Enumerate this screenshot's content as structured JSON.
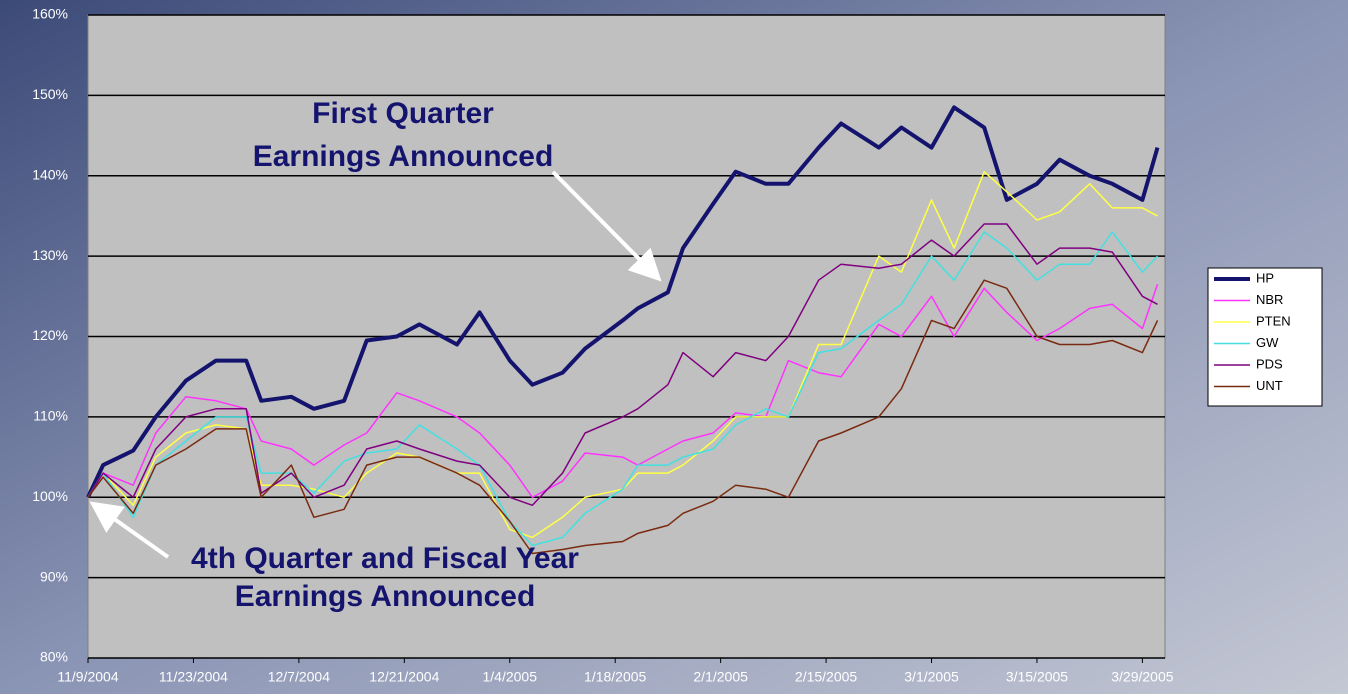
{
  "chart_data": {
    "type": "line",
    "x": [
      "2004-11-09",
      "2004-11-11",
      "2004-11-15",
      "2004-11-18",
      "2004-11-22",
      "2004-11-26",
      "2004-11-30",
      "2004-12-02",
      "2004-12-06",
      "2004-12-09",
      "2004-12-13",
      "2004-12-16",
      "2004-12-20",
      "2004-12-23",
      "2004-12-28",
      "2004-12-31",
      "2005-01-04",
      "2005-01-07",
      "2005-01-11",
      "2005-01-14",
      "2005-01-19",
      "2005-01-21",
      "2005-01-25",
      "2005-01-27",
      "2005-01-31",
      "2005-02-03",
      "2005-02-07",
      "2005-02-10",
      "2005-02-14",
      "2005-02-17",
      "2005-02-22",
      "2005-02-25",
      "2005-03-01",
      "2005-03-04",
      "2005-03-08",
      "2005-03-11",
      "2005-03-15",
      "2005-03-18",
      "2005-03-22",
      "2005-03-25",
      "2005-03-29",
      "2005-03-31"
    ],
    "series": [
      {
        "name": "HP",
        "color": "#14146e",
        "values": [
          100,
          104,
          105.8,
          110,
          114.5,
          117,
          117,
          112,
          112.5,
          111,
          112,
          119.5,
          120,
          121.5,
          119,
          123,
          117,
          114,
          115.5,
          118.5,
          122,
          123.5,
          125.5,
          131,
          136.5,
          140.5,
          139,
          139,
          143.5,
          146.5,
          143.5,
          146,
          143.5,
          148.5,
          146,
          137,
          139,
          142,
          140,
          139,
          137,
          143.5
        ]
      },
      {
        "name": "NBR",
        "color": "#ff33ff",
        "values": [
          100,
          103,
          101.5,
          108,
          112.5,
          112,
          111,
          107,
          106,
          104,
          106.5,
          108,
          113,
          112,
          110,
          108,
          104,
          100,
          102,
          105.5,
          105,
          104,
          106,
          107,
          108,
          110.5,
          110,
          117,
          115.5,
          115,
          121.5,
          120,
          125,
          120,
          126,
          123,
          119.5,
          121,
          123.5,
          124,
          121,
          126.5
        ]
      },
      {
        "name": "PTEN",
        "color": "#ffff44",
        "values": [
          100,
          103,
          99,
          105,
          108,
          109,
          108.5,
          101.5,
          101.5,
          101,
          100,
          103,
          105.5,
          105,
          103,
          103,
          96,
          95,
          97.5,
          100,
          101,
          103,
          103,
          104,
          107,
          110,
          110,
          110,
          119,
          119,
          130,
          128,
          137,
          131,
          140.5,
          138,
          134.5,
          135.5,
          139,
          136,
          136,
          135
        ]
      },
      {
        "name": "GW",
        "color": "#44e0e0",
        "values": [
          100,
          103,
          97.5,
          104,
          107,
          110,
          110,
          103,
          103,
          100.5,
          104.5,
          105.5,
          106,
          109,
          106,
          104,
          97,
          94,
          95,
          98,
          101,
          104,
          104,
          105,
          106,
          109,
          111,
          110,
          118,
          118.5,
          122,
          124,
          130,
          127,
          133,
          131,
          127,
          129,
          129,
          133,
          128,
          130
        ]
      },
      {
        "name": "PDS",
        "color": "#800080",
        "values": [
          100,
          103,
          100,
          106,
          110,
          111,
          111,
          100.5,
          103,
          100,
          101.5,
          106,
          107,
          106,
          104.5,
          104,
          100,
          99,
          103,
          108,
          110,
          111,
          114,
          118,
          115,
          118,
          117,
          120,
          127,
          129,
          128.5,
          129,
          132,
          130,
          134,
          134,
          129,
          131,
          131,
          130.5,
          125,
          124
        ]
      },
      {
        "name": "UNT",
        "color": "#7a2a10",
        "values": [
          100,
          102.5,
          98,
          104,
          106,
          108.5,
          108.5,
          100,
          104,
          97.5,
          98.5,
          104,
          105,
          105,
          103,
          101.5,
          97,
          93,
          93.5,
          94,
          94.5,
          95.5,
          96.5,
          98,
          99.5,
          101.5,
          101,
          100,
          107,
          108,
          110,
          113.5,
          122,
          121,
          127,
          126,
          120,
          119,
          119,
          119.5,
          118,
          122
        ]
      }
    ],
    "xlim": [
      "2004-11-09",
      "2005-04-01"
    ],
    "xticks": [
      {
        "value": "2004-11-09",
        "label": "11/9/2004"
      },
      {
        "value": "2004-11-23",
        "label": "11/23/2004"
      },
      {
        "value": "2004-12-07",
        "label": "12/7/2004"
      },
      {
        "value": "2004-12-21",
        "label": "12/21/2004"
      },
      {
        "value": "2005-01-04",
        "label": "1/4/2005"
      },
      {
        "value": "2005-01-18",
        "label": "1/18/2005"
      },
      {
        "value": "2005-02-01",
        "label": "2/1/2005"
      },
      {
        "value": "2005-02-15",
        "label": "2/15/2005"
      },
      {
        "value": "2005-03-01",
        "label": "3/1/2005"
      },
      {
        "value": "2005-03-15",
        "label": "3/15/2005"
      },
      {
        "value": "2005-03-29",
        "label": "3/29/2005"
      }
    ],
    "ylim": [
      80,
      160
    ],
    "yticks": [
      {
        "value": 80,
        "label": "80%"
      },
      {
        "value": 90,
        "label": "90%"
      },
      {
        "value": 100,
        "label": "100%"
      },
      {
        "value": 110,
        "label": "110%"
      },
      {
        "value": 120,
        "label": "120%"
      },
      {
        "value": 130,
        "label": "130%"
      },
      {
        "value": 140,
        "label": "140%"
      },
      {
        "value": 150,
        "label": "150%"
      },
      {
        "value": 160,
        "label": "160%"
      }
    ],
    "grid": true,
    "legend": "right",
    "annotations": [
      {
        "lines": [
          "First Quarter",
          "Earnings Announced"
        ]
      },
      {
        "lines": [
          "4th Quarter and Fiscal Year",
          "Earnings Announced"
        ]
      }
    ]
  }
}
